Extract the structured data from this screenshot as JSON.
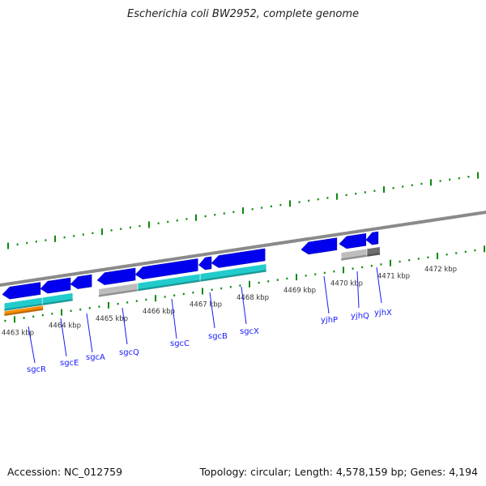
{
  "title": "Escherichia coli BW2952, complete genome",
  "footer": {
    "accession": "Accession: NC_012759",
    "topology": "Topology: circular; Length: 4,578,159 bp; Genes: 4,194"
  },
  "colors": {
    "backbone": "#8a8a8a",
    "cds": "#0000ee",
    "gene_cyan": "#22cccc",
    "gene_gray": "#bdbdbd",
    "gene_darkgray": "#6e6e6e",
    "gene_orange": "#ff8c00",
    "ticks": "#0a8a0a",
    "label": "#1a1aff"
  },
  "axis": {
    "ticks": [
      4463,
      4464,
      4465,
      4466,
      4467,
      4468,
      4469,
      4470,
      4471,
      4472
    ],
    "tick_labels": [
      "4463 kbp",
      "4464 kbp",
      "4465 kbp",
      "4466 kbp",
      "4467 kbp",
      "4468 kbp",
      "4469 kbp",
      "4470 kbp",
      "4471 kbp",
      "4472 kbp"
    ]
  },
  "cds": [
    {
      "name": "sgcR",
      "start": 4462.74,
      "end": 4463.55
    },
    {
      "name": "sgcE",
      "start": 4463.55,
      "end": 4464.19
    },
    {
      "name": "sgcA",
      "start": 4464.19,
      "end": 4464.64
    },
    {
      "name": "sgcQ",
      "start": 4464.76,
      "end": 4465.57
    },
    {
      "name": "sgcC",
      "start": 4465.57,
      "end": 4466.9
    },
    {
      "name": "sgcB",
      "start": 4466.92,
      "end": 4467.19
    },
    {
      "name": "sgcX",
      "start": 4467.19,
      "end": 4468.33
    },
    {
      "name": "yjhP",
      "start": 4469.1,
      "end": 4469.86
    },
    {
      "name": "yjhQ",
      "start": 4469.91,
      "end": 4470.48
    },
    {
      "name": "yjhX",
      "start": 4470.48,
      "end": 4470.74
    }
  ],
  "features": [
    {
      "start": 4462.78,
      "end": 4463.59,
      "color": "gene_cyan",
      "row": 0
    },
    {
      "start": 4462.78,
      "end": 4463.61,
      "color": "gene_orange",
      "row": 1
    },
    {
      "start": 4463.59,
      "end": 4464.24,
      "color": "gene_cyan",
      "row": 0
    },
    {
      "start": 4464.79,
      "end": 4465.62,
      "color": "gene_gray",
      "row": 0
    },
    {
      "start": 4465.62,
      "end": 4466.95,
      "color": "gene_cyan",
      "row": 0
    },
    {
      "start": 4466.95,
      "end": 4468.36,
      "color": "gene_cyan",
      "row": 0
    },
    {
      "start": 4469.95,
      "end": 4470.5,
      "color": "gene_gray",
      "row": 0
    },
    {
      "start": 4470.5,
      "end": 4470.78,
      "color": "gene_darkgray",
      "row": 0
    }
  ],
  "gene_labels": [
    "sgcR",
    "sgcE",
    "sgcA",
    "sgcQ",
    "sgcC",
    "sgcB",
    "sgcX",
    "yjhP",
    "yjhQ",
    "yjhX"
  ]
}
